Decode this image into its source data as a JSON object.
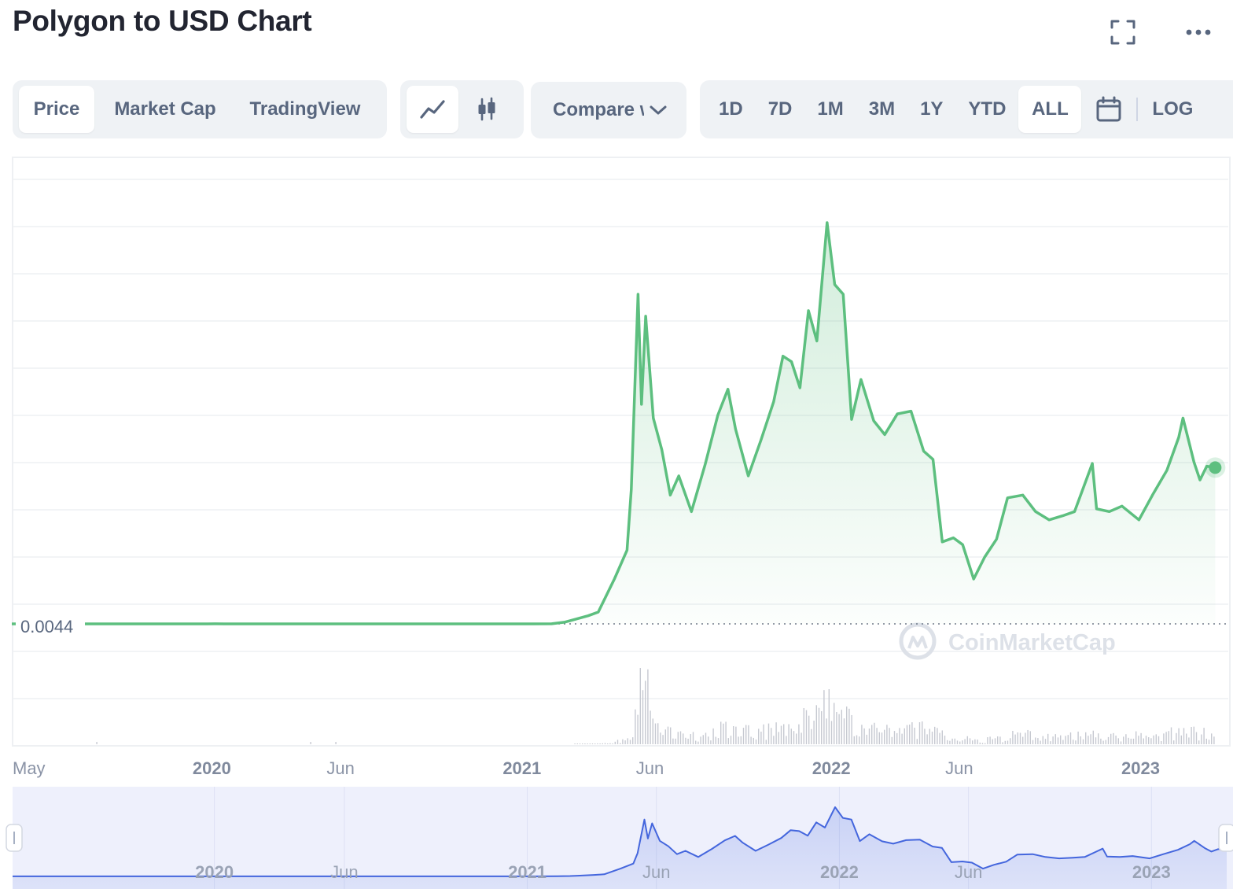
{
  "header": {
    "title": "Polygon to USD Chart"
  },
  "view_tabs": [
    {
      "label": "Price",
      "active": true
    },
    {
      "label": "Market Cap",
      "active": false
    },
    {
      "label": "TradingView",
      "active": false
    }
  ],
  "chart_type_toggle": {
    "selected": "line"
  },
  "compare": {
    "label": "Compare with"
  },
  "ranges": [
    {
      "label": "1D",
      "active": false
    },
    {
      "label": "7D",
      "active": false
    },
    {
      "label": "1M",
      "active": false
    },
    {
      "label": "3M",
      "active": false
    },
    {
      "label": "1Y",
      "active": false
    },
    {
      "label": "YTD",
      "active": false
    },
    {
      "label": "ALL",
      "active": true
    }
  ],
  "log_label": "LOG",
  "watermark": "CoinMarketCap",
  "colors": {
    "line": "#5dbf7f",
    "fill": "#e8f5ec",
    "volume": "#c6c9d1",
    "navigator_line": "#4466dd",
    "navigator_bg": "#eef0fc"
  },
  "chart_data": {
    "type": "area",
    "title": "Polygon to USD Chart",
    "xlabel": "",
    "ylabel": "",
    "x_tick_labels": [
      {
        "label": "May",
        "date": "2019-05",
        "bold": false
      },
      {
        "label": "2020",
        "date": "2020-01",
        "bold": true
      },
      {
        "label": "Jun",
        "date": "2020-06",
        "bold": false
      },
      {
        "label": "2021",
        "date": "2021-01",
        "bold": true
      },
      {
        "label": "Jun",
        "date": "2021-06",
        "bold": false
      },
      {
        "label": "2022",
        "date": "2022-01",
        "bold": true
      },
      {
        "label": "Jun",
        "date": "2022-06",
        "bold": false
      },
      {
        "label": "2023",
        "date": "2023-01",
        "bold": true
      }
    ],
    "reference_price": {
      "label": "0.0044",
      "value": 0.0044
    },
    "series": [
      {
        "values": [
          [
            "2019-05-10",
            0.0044
          ],
          [
            "2019-07-01",
            0.0044
          ],
          [
            "2019-09-01",
            0.0043
          ],
          [
            "2019-12-01",
            0.0044
          ],
          [
            "2019-12-27",
            0.0044
          ],
          [
            "2020-01-05",
            0.0048
          ],
          [
            "2020-01-15",
            0.0044
          ],
          [
            "2020-03-01",
            0.0045
          ],
          [
            "2020-04-01",
            0.0044
          ],
          [
            "2020-06-01",
            0.0045
          ],
          [
            "2020-08-01",
            0.0046
          ],
          [
            "2020-10-01",
            0.0045
          ],
          [
            "2020-12-20",
            0.0044
          ],
          [
            "2021-01-15",
            0.0046
          ],
          [
            "2021-02-05",
            0.0052
          ],
          [
            "2021-02-20",
            0.0163
          ],
          [
            "2021-03-01",
            0.0313
          ],
          [
            "2021-03-20",
            0.063
          ],
          [
            "2021-04-01",
            0.09
          ],
          [
            "2021-04-20",
            0.33
          ],
          [
            "2021-05-05",
            0.54
          ],
          [
            "2021-05-10",
            0.98
          ],
          [
            "2021-05-18",
            2.4
          ],
          [
            "2021-05-22",
            1.6
          ],
          [
            "2021-05-27",
            2.24
          ],
          [
            "2021-06-05",
            1.5
          ],
          [
            "2021-06-15",
            1.27
          ],
          [
            "2021-06-25",
            0.94
          ],
          [
            "2021-07-05",
            1.08
          ],
          [
            "2021-07-20",
            0.82
          ],
          [
            "2021-08-05",
            1.16
          ],
          [
            "2021-08-20",
            1.52
          ],
          [
            "2021-09-01",
            1.71
          ],
          [
            "2021-09-10",
            1.42
          ],
          [
            "2021-09-25",
            1.08
          ],
          [
            "2021-10-10",
            1.34
          ],
          [
            "2021-10-25",
            1.62
          ],
          [
            "2021-11-05",
            1.95
          ],
          [
            "2021-11-15",
            1.91
          ],
          [
            "2021-11-25",
            1.72
          ],
          [
            "2021-12-05",
            2.28
          ],
          [
            "2021-12-15",
            2.06
          ],
          [
            "2021-12-27",
            2.92
          ],
          [
            "2022-01-05",
            2.47
          ],
          [
            "2022-01-15",
            2.4
          ],
          [
            "2022-01-25",
            1.49
          ],
          [
            "2022-02-05",
            1.78
          ],
          [
            "2022-02-20",
            1.48
          ],
          [
            "2022-03-05",
            1.38
          ],
          [
            "2022-03-20",
            1.53
          ],
          [
            "2022-04-05",
            1.55
          ],
          [
            "2022-04-20",
            1.26
          ],
          [
            "2022-05-01",
            1.2
          ],
          [
            "2022-05-12",
            0.6
          ],
          [
            "2022-05-25",
            0.63
          ],
          [
            "2022-06-05",
            0.58
          ],
          [
            "2022-06-18",
            0.33
          ],
          [
            "2022-07-01",
            0.49
          ],
          [
            "2022-07-15",
            0.62
          ],
          [
            "2022-07-28",
            0.92
          ],
          [
            "2022-08-15",
            0.94
          ],
          [
            "2022-08-30",
            0.82
          ],
          [
            "2022-09-15",
            0.76
          ],
          [
            "2022-10-01",
            0.79
          ],
          [
            "2022-10-15",
            0.82
          ],
          [
            "2022-11-05",
            1.17
          ],
          [
            "2022-11-10",
            0.84
          ],
          [
            "2022-11-25",
            0.82
          ],
          [
            "2022-12-10",
            0.86
          ],
          [
            "2022-12-30",
            0.76
          ],
          [
            "2023-01-15",
            0.94
          ],
          [
            "2023-02-01",
            1.12
          ],
          [
            "2023-02-15",
            1.36
          ],
          [
            "2023-02-20",
            1.5
          ],
          [
            "2023-03-05",
            1.18
          ],
          [
            "2023-03-12",
            1.05
          ],
          [
            "2023-03-20",
            1.15
          ],
          [
            "2023-03-30",
            1.14
          ]
        ]
      }
    ],
    "navigator_x_tick_labels": [
      "2020",
      "Jun",
      "2021",
      "Jun",
      "2022",
      "Jun",
      "2023"
    ],
    "grid": true,
    "scale": "linear"
  }
}
